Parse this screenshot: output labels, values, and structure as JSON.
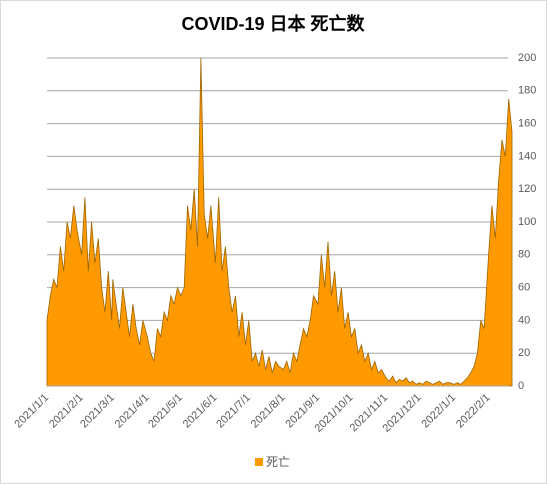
{
  "chart_data": {
    "type": "area",
    "title": "COVID-19 日本 死亡数",
    "x": [
      "2021/1/1",
      "2021/1/4",
      "2021/1/7",
      "2021/1/10",
      "2021/1/13",
      "2021/1/16",
      "2021/1/19",
      "2021/1/22",
      "2021/1/25",
      "2021/1/28",
      "2021/2/1",
      "2021/2/4",
      "2021/2/7",
      "2021/2/10",
      "2021/2/13",
      "2021/2/16",
      "2021/2/19",
      "2021/2/22",
      "2021/2/25",
      "2021/2/28",
      "2021/3/1",
      "2021/3/4",
      "2021/3/7",
      "2021/3/10",
      "2021/3/13",
      "2021/3/16",
      "2021/3/19",
      "2021/3/22",
      "2021/3/25",
      "2021/3/28",
      "2021/4/1",
      "2021/4/4",
      "2021/4/7",
      "2021/4/10",
      "2021/4/13",
      "2021/4/16",
      "2021/4/19",
      "2021/4/22",
      "2021/4/25",
      "2021/4/28",
      "2021/5/1",
      "2021/5/4",
      "2021/5/7",
      "2021/5/10",
      "2021/5/13",
      "2021/5/16",
      "2021/5/19",
      "2021/5/22",
      "2021/5/25",
      "2021/5/28",
      "2021/6/1",
      "2021/6/4",
      "2021/6/7",
      "2021/6/10",
      "2021/6/13",
      "2021/6/16",
      "2021/6/19",
      "2021/6/22",
      "2021/6/25",
      "2021/6/28",
      "2021/7/1",
      "2021/7/4",
      "2021/7/7",
      "2021/7/10",
      "2021/7/13",
      "2021/7/16",
      "2021/7/19",
      "2021/7/22",
      "2021/7/25",
      "2021/7/28",
      "2021/8/1",
      "2021/8/4",
      "2021/8/7",
      "2021/8/10",
      "2021/8/13",
      "2021/8/16",
      "2021/8/19",
      "2021/8/22",
      "2021/8/25",
      "2021/8/28",
      "2021/9/1",
      "2021/9/4",
      "2021/9/7",
      "2021/9/10",
      "2021/9/13",
      "2021/9/16",
      "2021/9/19",
      "2021/9/22",
      "2021/9/25",
      "2021/9/28",
      "2021/10/1",
      "2021/10/4",
      "2021/10/7",
      "2021/10/10",
      "2021/10/13",
      "2021/10/16",
      "2021/10/19",
      "2021/10/22",
      "2021/10/25",
      "2021/10/28",
      "2021/11/1",
      "2021/11/4",
      "2021/11/7",
      "2021/11/10",
      "2021/11/13",
      "2021/11/16",
      "2021/11/19",
      "2021/11/22",
      "2021/11/25",
      "2021/11/28",
      "2021/12/1",
      "2021/12/4",
      "2021/12/7",
      "2021/12/10",
      "2021/12/13",
      "2021/12/16",
      "2021/12/19",
      "2021/12/22",
      "2021/12/25",
      "2021/12/28",
      "2022/1/1",
      "2022/1/4",
      "2022/1/7",
      "2022/1/10",
      "2022/1/13",
      "2022/1/16",
      "2022/1/19",
      "2022/1/22",
      "2022/1/25",
      "2022/1/28",
      "2022/2/1",
      "2022/2/4",
      "2022/2/7",
      "2022/2/10",
      "2022/2/13",
      "2022/2/16",
      "2022/2/19",
      "2022/2/22"
    ],
    "series": [
      {
        "name": "死亡",
        "color": "#ff9900",
        "values": [
          40,
          55,
          65,
          60,
          85,
          70,
          100,
          90,
          110,
          95,
          80,
          115,
          70,
          100,
          75,
          90,
          60,
          45,
          70,
          40,
          65,
          50,
          35,
          60,
          45,
          30,
          50,
          35,
          25,
          40,
          30,
          20,
          15,
          35,
          30,
          45,
          40,
          55,
          50,
          60,
          55,
          60,
          110,
          95,
          120,
          85,
          200,
          105,
          90,
          110,
          75,
          115,
          70,
          85,
          60,
          45,
          55,
          30,
          45,
          25,
          40,
          15,
          20,
          12,
          22,
          10,
          18,
          8,
          15,
          12,
          10,
          15,
          8,
          20,
          15,
          25,
          35,
          30,
          40,
          55,
          50,
          80,
          60,
          88,
          55,
          70,
          45,
          60,
          35,
          45,
          30,
          35,
          20,
          25,
          15,
          20,
          10,
          15,
          8,
          10,
          5,
          3,
          6,
          2,
          4,
          3,
          5,
          2,
          3,
          1,
          2,
          1,
          3,
          2,
          1,
          2,
          3,
          1,
          2,
          2,
          1,
          2,
          1,
          3,
          5,
          8,
          12,
          20,
          40,
          35,
          80,
          110,
          90,
          125,
          150,
          140,
          175,
          155
        ]
      }
    ],
    "xlim": [
      "2021/1/1",
      "2022/2/22"
    ],
    "xticks": [
      "2021/1/1",
      "2021/2/1",
      "2021/3/1",
      "2021/4/1",
      "2021/5/1",
      "2021/6/1",
      "2021/7/1",
      "2021/8/1",
      "2021/9/1",
      "2021/10/1",
      "2021/11/1",
      "2021/12/1",
      "2022/1/1",
      "2022/2/1"
    ],
    "ylim": [
      0,
      200
    ],
    "yticks": [
      0,
      20,
      40,
      60,
      80,
      100,
      120,
      140,
      160,
      180,
      200
    ],
    "grid": true,
    "legend": "bottom"
  }
}
